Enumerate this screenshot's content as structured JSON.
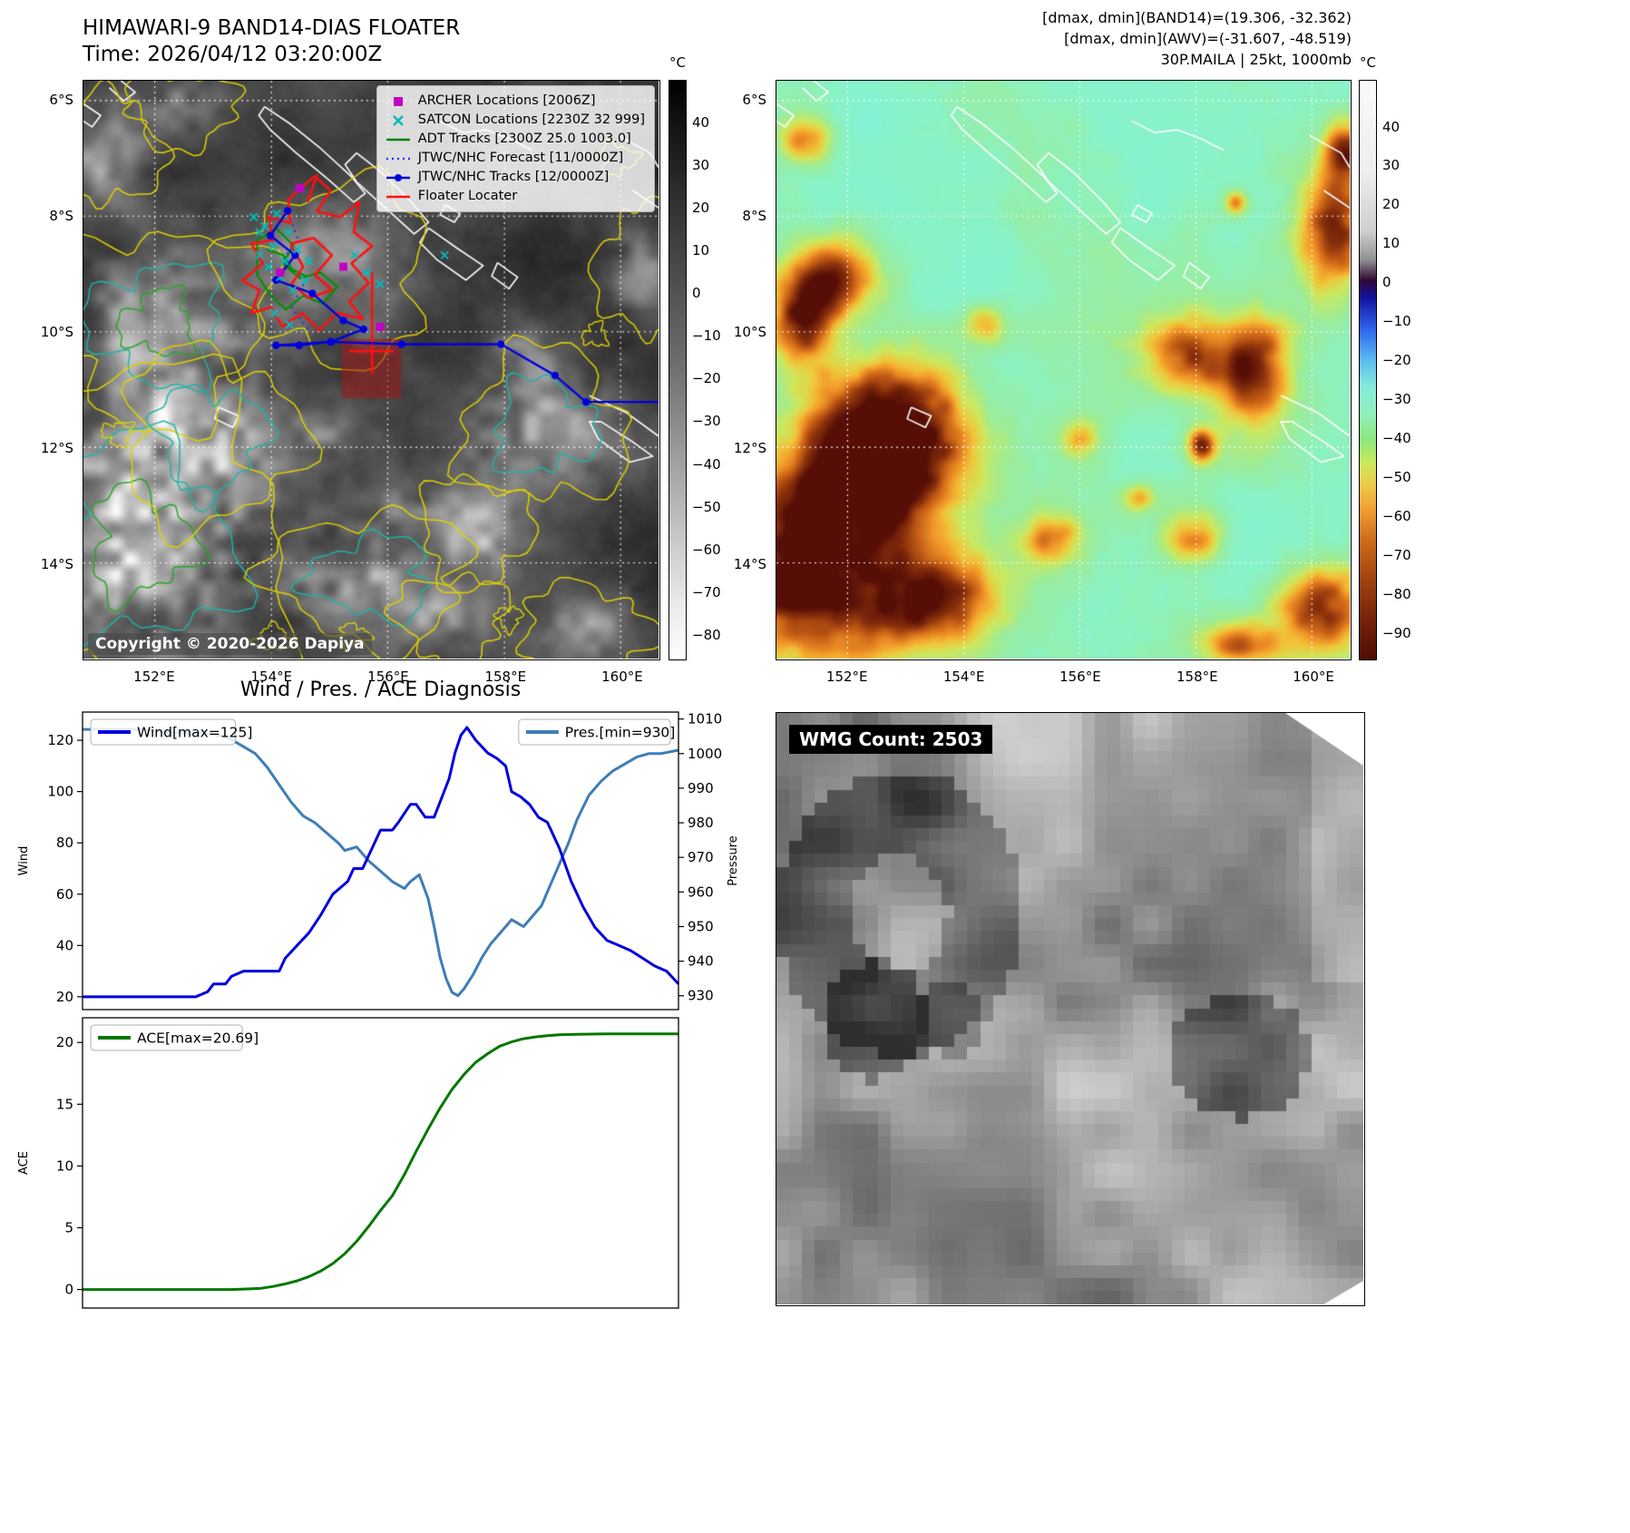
{
  "panel_ir": {
    "title": "HIMAWARI-9 BAND14-DIAS FLOATER",
    "subtitle": "Time: 2026/04/12 03:20:00Z",
    "copyright": "Copyright © 2020-2026 Dapiya",
    "x_ticks": [
      "152°E",
      "154°E",
      "156°E",
      "158°E",
      "160°E"
    ],
    "y_ticks": [
      "6°S",
      "8°S",
      "10°S",
      "12°S",
      "14°S"
    ],
    "colorbar": {
      "unit": "°C",
      "ticks": [
        "40",
        "30",
        "20",
        "10",
        "0",
        "−10",
        "−20",
        "−30",
        "−40",
        "−50",
        "−60",
        "−70",
        "−80"
      ]
    },
    "legend": [
      {
        "label": "ARCHER Locations [2006Z]",
        "marker": "square",
        "color": "#c400c4"
      },
      {
        "label": "SATCON Locations [2230Z 32 999]",
        "marker": "x",
        "color": "#00b8b8"
      },
      {
        "label": "ADT Tracks [2300Z 25.0 1003.0]",
        "marker": "line",
        "color": "#008000"
      },
      {
        "label": "JTWC/NHC Forecast [11/0000Z]",
        "marker": "dotted",
        "color": "#2a2aee"
      },
      {
        "label": "JTWC/NHC Tracks [12/0000Z]",
        "marker": "line-marker",
        "color": "#0000dd"
      },
      {
        "label": "Floater Locater",
        "marker": "line",
        "color": "#ff1010"
      }
    ],
    "overlays": {
      "jtwc_track": [
        [
          0.355,
          0.225
        ],
        [
          0.325,
          0.268
        ],
        [
          0.368,
          0.302
        ],
        [
          0.335,
          0.345
        ],
        [
          0.398,
          0.368
        ],
        [
          0.452,
          0.415
        ],
        [
          0.487,
          0.43
        ],
        [
          0.43,
          0.452
        ],
        [
          0.375,
          0.458
        ],
        [
          0.335,
          0.458
        ],
        [
          0.43,
          0.452
        ],
        [
          0.553,
          0.456
        ],
        [
          0.726,
          0.456
        ],
        [
          0.82,
          0.51
        ],
        [
          0.874,
          0.556
        ],
        [
          1.0,
          0.556
        ]
      ],
      "forecast_track": [
        [
          0.356,
          0.228
        ],
        [
          0.372,
          0.272
        ],
        [
          0.346,
          0.312
        ],
        [
          0.386,
          0.346
        ],
        [
          0.362,
          0.392
        ],
        [
          0.392,
          0.432
        ]
      ],
      "floater_paths": [
        [
          [
            0.402,
            0.165
          ],
          [
            0.43,
            0.19
          ],
          [
            0.406,
            0.226
          ],
          [
            0.446,
            0.236
          ],
          [
            0.48,
            0.21
          ],
          [
            0.47,
            0.262
          ],
          [
            0.502,
            0.286
          ],
          [
            0.466,
            0.316
          ],
          [
            0.496,
            0.35
          ],
          [
            0.462,
            0.382
          ],
          [
            0.486,
            0.412
          ],
          [
            0.44,
            0.402
          ],
          [
            0.41,
            0.432
          ],
          [
            0.38,
            0.402
          ],
          [
            0.346,
            0.426
          ],
          [
            0.326,
            0.392
          ],
          [
            0.292,
            0.402
          ],
          [
            0.306,
            0.362
          ],
          [
            0.276,
            0.346
          ],
          [
            0.312,
            0.316
          ],
          [
            0.292,
            0.282
          ],
          [
            0.33,
            0.276
          ],
          [
            0.322,
            0.236
          ],
          [
            0.36,
            0.246
          ],
          [
            0.356,
            0.206
          ],
          [
            0.402,
            0.165
          ]
        ],
        [
          [
            0.36,
            0.282
          ],
          [
            0.4,
            0.272
          ],
          [
            0.432,
            0.302
          ],
          [
            0.402,
            0.336
          ],
          [
            0.432,
            0.362
          ],
          [
            0.392,
            0.376
          ],
          [
            0.362,
            0.352
          ],
          [
            0.382,
            0.322
          ],
          [
            0.36,
            0.282
          ]
        ],
        [
          [
            0.502,
            0.332
          ],
          [
            0.502,
            0.506
          ]
        ],
        [
          [
            0.462,
            0.468
          ],
          [
            0.54,
            0.468
          ]
        ],
        [
          [
            0.406,
            0.162
          ],
          [
            0.39,
            0.21
          ]
        ]
      ],
      "adt_paths": [
        [
          [
            0.302,
            0.276
          ],
          [
            0.336,
            0.256
          ],
          [
            0.366,
            0.286
          ],
          [
            0.346,
            0.316
          ],
          [
            0.376,
            0.342
          ],
          [
            0.412,
            0.332
          ],
          [
            0.442,
            0.356
          ],
          [
            0.416,
            0.386
          ],
          [
            0.382,
            0.372
          ],
          [
            0.352,
            0.396
          ],
          [
            0.326,
            0.372
          ],
          [
            0.302,
            0.336
          ],
          [
            0.302,
            0.276
          ]
        ],
        [
          [
            0.318,
            0.292
          ],
          [
            0.348,
            0.302
          ],
          [
            0.362,
            0.326
          ],
          [
            0.386,
            0.338
          ]
        ]
      ],
      "satcon_points": [
        [
          0.296,
          0.236
        ],
        [
          0.316,
          0.252
        ],
        [
          0.336,
          0.23
        ],
        [
          0.356,
          0.262
        ],
        [
          0.33,
          0.286
        ],
        [
          0.306,
          0.302
        ],
        [
          0.35,
          0.312
        ],
        [
          0.372,
          0.292
        ],
        [
          0.392,
          0.312
        ],
        [
          0.342,
          0.34
        ],
        [
          0.364,
          0.362
        ],
        [
          0.386,
          0.346
        ],
        [
          0.472,
          0.302
        ],
        [
          0.492,
          0.332
        ],
        [
          0.516,
          0.352
        ],
        [
          0.332,
          0.402
        ],
        [
          0.358,
          0.422
        ],
        [
          0.628,
          0.302
        ],
        [
          0.306,
          0.262
        ],
        [
          0.322,
          0.322
        ]
      ],
      "archer_points": [
        [
          0.376,
          0.186
        ],
        [
          0.452,
          0.322
        ],
        [
          0.342,
          0.332
        ],
        [
          0.516,
          0.426
        ]
      ],
      "focus_rect": [
        0.449,
        0.447,
        0.104,
        0.103
      ]
    }
  },
  "panel_enh": {
    "header_lines": [
      "[dmax, dmin](BAND14)=(19.306, -32.362)",
      "[dmax, dmin](AWV)=(-31.607, -48.519)",
      "30P.MAILA | 25kt, 1000mb"
    ],
    "x_ticks": [
      "152°E",
      "154°E",
      "156°E",
      "158°E",
      "160°E"
    ],
    "y_ticks": [
      "6°S",
      "8°S",
      "10°S",
      "12°S",
      "14°S"
    ],
    "colorbar": {
      "unit": "°C",
      "ticks": [
        "40",
        "30",
        "20",
        "10",
        "0",
        "−10",
        "−20",
        "−30",
        "−40",
        "−50",
        "−60",
        "−70",
        "−80",
        "−90"
      ]
    }
  },
  "chart_data": [
    {
      "type": "line",
      "title": "Wind / Pres. / ACE Diagnosis",
      "x_range": [
        0,
        1
      ],
      "grid": false,
      "left_axis": {
        "label": "Wind",
        "ticks": [
          20,
          40,
          60,
          80,
          100,
          120
        ],
        "range": [
          15,
          131
        ]
      },
      "right_axis": {
        "label": "Pressure",
        "ticks": [
          930,
          940,
          950,
          960,
          970,
          980,
          990,
          1000,
          1010
        ],
        "range": [
          926,
          1012
        ]
      },
      "series": [
        {
          "name": "Wind[max=125]",
          "color": "#0000dd",
          "axis": "left",
          "legend_pos": "top-left",
          "x": [
            0,
            0.04,
            0.08,
            0.12,
            0.16,
            0.19,
            0.21,
            0.22,
            0.24,
            0.25,
            0.27,
            0.3,
            0.33,
            0.34,
            0.36,
            0.38,
            0.4,
            0.42,
            0.43,
            0.445,
            0.455,
            0.47,
            0.48,
            0.5,
            0.52,
            0.53,
            0.55,
            0.56,
            0.575,
            0.59,
            0.6,
            0.615,
            0.625,
            0.635,
            0.645,
            0.66,
            0.68,
            0.695,
            0.71,
            0.72,
            0.735,
            0.75,
            0.765,
            0.78,
            0.8,
            0.82,
            0.84,
            0.86,
            0.88,
            0.9,
            0.92,
            0.94,
            0.96,
            0.98,
            1.0
          ],
          "values": [
            20,
            20,
            20,
            20,
            20,
            20,
            22,
            25,
            25,
            28,
            30,
            30,
            30,
            35,
            40,
            45,
            52,
            60,
            62,
            65,
            70,
            70,
            75,
            85,
            85,
            88,
            95,
            95,
            90,
            90,
            96,
            105,
            115,
            122,
            125,
            120,
            115,
            113,
            110,
            100,
            98,
            95,
            90,
            88,
            78,
            65,
            55,
            47,
            42,
            40,
            38,
            35,
            32,
            30,
            25
          ]
        },
        {
          "name": "Pres.[min=930]",
          "color": "#3d7db8",
          "axis": "right",
          "legend_pos": "top-right",
          "x": [
            0,
            0.05,
            0.1,
            0.15,
            0.2,
            0.24,
            0.27,
            0.29,
            0.31,
            0.33,
            0.35,
            0.37,
            0.39,
            0.41,
            0.43,
            0.44,
            0.46,
            0.48,
            0.5,
            0.52,
            0.54,
            0.55,
            0.565,
            0.58,
            0.59,
            0.6,
            0.61,
            0.62,
            0.63,
            0.64,
            0.655,
            0.67,
            0.685,
            0.7,
            0.71,
            0.72,
            0.73,
            0.74,
            0.755,
            0.77,
            0.785,
            0.8,
            0.815,
            0.83,
            0.85,
            0.87,
            0.89,
            0.91,
            0.93,
            0.95,
            0.97,
            1.0
          ],
          "values": [
            1007,
            1007,
            1007,
            1006,
            1006,
            1005,
            1002,
            1000,
            996,
            991,
            986,
            982,
            980,
            977,
            974,
            972,
            973,
            969,
            966,
            963,
            961,
            963,
            965,
            958,
            950,
            941,
            935,
            931,
            930,
            932,
            936,
            941,
            945,
            948,
            950,
            952,
            951,
            950,
            953,
            956,
            962,
            968,
            974,
            981,
            988,
            992,
            995,
            997,
            999,
            1000,
            1000,
            1001
          ]
        }
      ]
    },
    {
      "type": "line",
      "x_range": [
        0,
        1
      ],
      "grid": false,
      "left_axis": {
        "label": "ACE",
        "ticks": [
          0,
          5,
          10,
          15,
          20
        ],
        "range": [
          -1.5,
          22
        ]
      },
      "series": [
        {
          "name": "ACE[max=20.69]",
          "color": "#007800",
          "axis": "left",
          "legend_pos": "top-left",
          "x": [
            0,
            0.05,
            0.1,
            0.15,
            0.2,
            0.25,
            0.28,
            0.3,
            0.32,
            0.34,
            0.36,
            0.38,
            0.4,
            0.42,
            0.44,
            0.46,
            0.48,
            0.5,
            0.52,
            0.54,
            0.56,
            0.58,
            0.6,
            0.62,
            0.64,
            0.66,
            0.68,
            0.7,
            0.72,
            0.74,
            0.76,
            0.78,
            0.8,
            0.84,
            0.88,
            0.92,
            0.96,
            1.0
          ],
          "values": [
            0,
            0,
            0,
            0,
            0,
            0,
            0.05,
            0.1,
            0.25,
            0.45,
            0.7,
            1.05,
            1.5,
            2.1,
            2.9,
            3.9,
            5.1,
            6.4,
            7.6,
            9.3,
            11.2,
            13.0,
            14.7,
            16.2,
            17.4,
            18.4,
            19.1,
            19.7,
            20.05,
            20.3,
            20.45,
            20.55,
            20.62,
            20.67,
            20.69,
            20.69,
            20.69,
            20.69
          ]
        }
      ]
    }
  ],
  "panel_wmg": {
    "badge": "WMG Count: 2503"
  }
}
